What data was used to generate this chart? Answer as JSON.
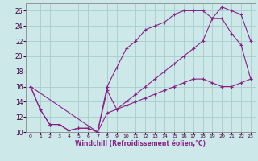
{
  "background_color": "#cce8e8",
  "grid_color": "#aacccc",
  "line_color": "#882288",
  "marker_color": "#882288",
  "xlabel": "Windchill (Refroidissement éolien,°C)",
  "xlim": [
    -0.5,
    23.5
  ],
  "ylim": [
    10,
    27
  ],
  "yticks": [
    10,
    12,
    14,
    16,
    18,
    20,
    22,
    24,
    26
  ],
  "xticks": [
    0,
    1,
    2,
    3,
    4,
    5,
    6,
    7,
    8,
    9,
    10,
    11,
    12,
    13,
    14,
    15,
    16,
    17,
    18,
    19,
    20,
    21,
    22,
    23
  ],
  "series1_x": [
    0,
    1,
    2,
    3,
    4,
    5,
    6,
    7,
    8,
    9,
    10,
    11,
    12,
    13,
    14,
    15,
    16,
    17,
    18,
    19,
    20,
    21,
    22,
    23
  ],
  "series1_y": [
    16.0,
    13.0,
    11.0,
    11.0,
    10.2,
    10.5,
    10.5,
    10.0,
    12.5,
    13.0,
    13.5,
    14.0,
    14.5,
    15.0,
    15.5,
    16.0,
    16.5,
    17.0,
    17.0,
    16.5,
    16.0,
    16.0,
    16.5,
    17.0
  ],
  "series2_x": [
    0,
    1,
    2,
    3,
    4,
    5,
    6,
    7,
    8,
    9,
    10,
    11,
    12,
    13,
    14,
    15,
    16,
    17,
    18,
    19,
    20,
    21,
    22,
    23
  ],
  "series2_y": [
    16.0,
    13.0,
    11.0,
    11.0,
    10.2,
    10.5,
    10.5,
    10.0,
    16.0,
    18.5,
    21.0,
    22.0,
    23.5,
    24.0,
    24.5,
    25.5,
    26.0,
    26.0,
    26.0,
    25.0,
    25.0,
    23.0,
    21.5,
    17.0
  ],
  "series3_x": [
    0,
    7,
    8,
    9,
    10,
    11,
    12,
    13,
    14,
    15,
    16,
    17,
    18,
    19,
    20,
    21,
    22,
    23
  ],
  "series3_y": [
    16.0,
    10.0,
    15.5,
    13.0,
    14.0,
    15.0,
    16.0,
    17.0,
    18.0,
    19.0,
    20.0,
    21.0,
    22.0,
    25.0,
    26.5,
    26.0,
    25.5,
    22.0
  ]
}
